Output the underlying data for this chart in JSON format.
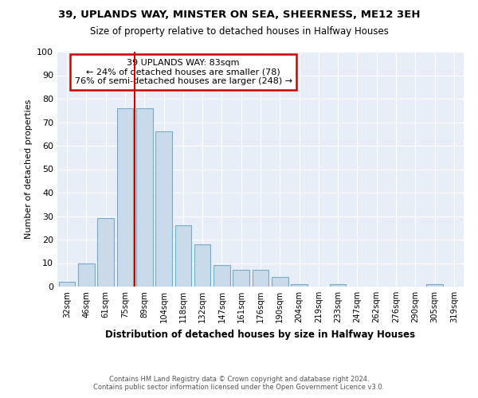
{
  "title1": "39, UPLANDS WAY, MINSTER ON SEA, SHEERNESS, ME12 3EH",
  "title2": "Size of property relative to detached houses in Halfway Houses",
  "xlabel": "Distribution of detached houses by size in Halfway Houses",
  "ylabel": "Number of detached properties",
  "categories": [
    "32sqm",
    "46sqm",
    "61sqm",
    "75sqm",
    "89sqm",
    "104sqm",
    "118sqm",
    "132sqm",
    "147sqm",
    "161sqm",
    "176sqm",
    "190sqm",
    "204sqm",
    "219sqm",
    "233sqm",
    "247sqm",
    "262sqm",
    "276sqm",
    "290sqm",
    "305sqm",
    "319sqm"
  ],
  "values": [
    2,
    10,
    29,
    76,
    76,
    66,
    26,
    18,
    9,
    7,
    7,
    4,
    1,
    0,
    1,
    0,
    0,
    0,
    0,
    1,
    0
  ],
  "bar_color": "#c9daea",
  "bar_edge_color": "#7aaac8",
  "vline_color": "#cc0000",
  "annotation_text": "39 UPLANDS WAY: 83sqm\n← 24% of detached houses are smaller (78)\n76% of semi-detached houses are larger (248) →",
  "annotation_box_color": "#ffffff",
  "annotation_box_edge": "#cc0000",
  "ylim": [
    0,
    100
  ],
  "yticks": [
    0,
    10,
    20,
    30,
    40,
    50,
    60,
    70,
    80,
    90,
    100
  ],
  "bg_color": "#e8eef8",
  "grid_color": "#ffffff",
  "footer1": "Contains HM Land Registry data © Crown copyright and database right 2024.",
  "footer2": "Contains public sector information licensed under the Open Government Licence v3.0."
}
